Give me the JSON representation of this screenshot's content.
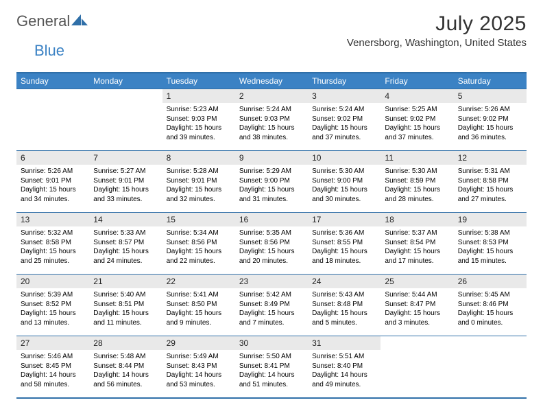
{
  "logo": {
    "text_a": "General",
    "text_b": "Blue"
  },
  "title": "July 2025",
  "location": "Venersborg, Washington, United States",
  "colors": {
    "header_bg": "#3b82c4",
    "header_text": "#ffffff",
    "rule": "#2f6fa8",
    "daynum_bg": "#e9e9e9",
    "body_text": "#000000",
    "page_bg": "#ffffff"
  },
  "day_headers": [
    "Sunday",
    "Monday",
    "Tuesday",
    "Wednesday",
    "Thursday",
    "Friday",
    "Saturday"
  ],
  "weeks": [
    [
      null,
      null,
      {
        "n": "1",
        "sunrise": "5:23 AM",
        "sunset": "9:03 PM",
        "dl_h": "15",
        "dl_m": "39"
      },
      {
        "n": "2",
        "sunrise": "5:24 AM",
        "sunset": "9:03 PM",
        "dl_h": "15",
        "dl_m": "38"
      },
      {
        "n": "3",
        "sunrise": "5:24 AM",
        "sunset": "9:02 PM",
        "dl_h": "15",
        "dl_m": "37"
      },
      {
        "n": "4",
        "sunrise": "5:25 AM",
        "sunset": "9:02 PM",
        "dl_h": "15",
        "dl_m": "37"
      },
      {
        "n": "5",
        "sunrise": "5:26 AM",
        "sunset": "9:02 PM",
        "dl_h": "15",
        "dl_m": "36"
      }
    ],
    [
      {
        "n": "6",
        "sunrise": "5:26 AM",
        "sunset": "9:01 PM",
        "dl_h": "15",
        "dl_m": "34"
      },
      {
        "n": "7",
        "sunrise": "5:27 AM",
        "sunset": "9:01 PM",
        "dl_h": "15",
        "dl_m": "33"
      },
      {
        "n": "8",
        "sunrise": "5:28 AM",
        "sunset": "9:01 PM",
        "dl_h": "15",
        "dl_m": "32"
      },
      {
        "n": "9",
        "sunrise": "5:29 AM",
        "sunset": "9:00 PM",
        "dl_h": "15",
        "dl_m": "31"
      },
      {
        "n": "10",
        "sunrise": "5:30 AM",
        "sunset": "9:00 PM",
        "dl_h": "15",
        "dl_m": "30"
      },
      {
        "n": "11",
        "sunrise": "5:30 AM",
        "sunset": "8:59 PM",
        "dl_h": "15",
        "dl_m": "28"
      },
      {
        "n": "12",
        "sunrise": "5:31 AM",
        "sunset": "8:58 PM",
        "dl_h": "15",
        "dl_m": "27"
      }
    ],
    [
      {
        "n": "13",
        "sunrise": "5:32 AM",
        "sunset": "8:58 PM",
        "dl_h": "15",
        "dl_m": "25"
      },
      {
        "n": "14",
        "sunrise": "5:33 AM",
        "sunset": "8:57 PM",
        "dl_h": "15",
        "dl_m": "24"
      },
      {
        "n": "15",
        "sunrise": "5:34 AM",
        "sunset": "8:56 PM",
        "dl_h": "15",
        "dl_m": "22"
      },
      {
        "n": "16",
        "sunrise": "5:35 AM",
        "sunset": "8:56 PM",
        "dl_h": "15",
        "dl_m": "20"
      },
      {
        "n": "17",
        "sunrise": "5:36 AM",
        "sunset": "8:55 PM",
        "dl_h": "15",
        "dl_m": "18"
      },
      {
        "n": "18",
        "sunrise": "5:37 AM",
        "sunset": "8:54 PM",
        "dl_h": "15",
        "dl_m": "17"
      },
      {
        "n": "19",
        "sunrise": "5:38 AM",
        "sunset": "8:53 PM",
        "dl_h": "15",
        "dl_m": "15"
      }
    ],
    [
      {
        "n": "20",
        "sunrise": "5:39 AM",
        "sunset": "8:52 PM",
        "dl_h": "15",
        "dl_m": "13"
      },
      {
        "n": "21",
        "sunrise": "5:40 AM",
        "sunset": "8:51 PM",
        "dl_h": "15",
        "dl_m": "11"
      },
      {
        "n": "22",
        "sunrise": "5:41 AM",
        "sunset": "8:50 PM",
        "dl_h": "15",
        "dl_m": "9"
      },
      {
        "n": "23",
        "sunrise": "5:42 AM",
        "sunset": "8:49 PM",
        "dl_h": "15",
        "dl_m": "7"
      },
      {
        "n": "24",
        "sunrise": "5:43 AM",
        "sunset": "8:48 PM",
        "dl_h": "15",
        "dl_m": "5"
      },
      {
        "n": "25",
        "sunrise": "5:44 AM",
        "sunset": "8:47 PM",
        "dl_h": "15",
        "dl_m": "3"
      },
      {
        "n": "26",
        "sunrise": "5:45 AM",
        "sunset": "8:46 PM",
        "dl_h": "15",
        "dl_m": "0"
      }
    ],
    [
      {
        "n": "27",
        "sunrise": "5:46 AM",
        "sunset": "8:45 PM",
        "dl_h": "14",
        "dl_m": "58"
      },
      {
        "n": "28",
        "sunrise": "5:48 AM",
        "sunset": "8:44 PM",
        "dl_h": "14",
        "dl_m": "56"
      },
      {
        "n": "29",
        "sunrise": "5:49 AM",
        "sunset": "8:43 PM",
        "dl_h": "14",
        "dl_m": "53"
      },
      {
        "n": "30",
        "sunrise": "5:50 AM",
        "sunset": "8:41 PM",
        "dl_h": "14",
        "dl_m": "51"
      },
      {
        "n": "31",
        "sunrise": "5:51 AM",
        "sunset": "8:40 PM",
        "dl_h": "14",
        "dl_m": "49"
      },
      null,
      null
    ]
  ]
}
